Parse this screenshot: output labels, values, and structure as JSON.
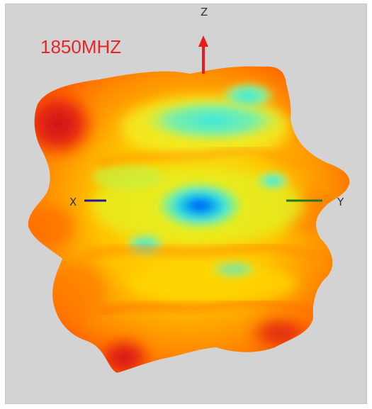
{
  "diagram": {
    "frequency_label": "1850MHZ",
    "axes": {
      "z": {
        "label": "Z",
        "color": "#e81c1c"
      },
      "x": {
        "label": "X",
        "color": "#1a1aa8"
      },
      "y": {
        "label": "Y",
        "color": "#1e7a1e"
      }
    },
    "colormap": [
      "#d4151b",
      "#ff5a00",
      "#ffb000",
      "#ffe800",
      "#b8f236",
      "#4ef0d8",
      "#00b4f0",
      "#0060ff"
    ],
    "background": "#d3d3d3"
  }
}
